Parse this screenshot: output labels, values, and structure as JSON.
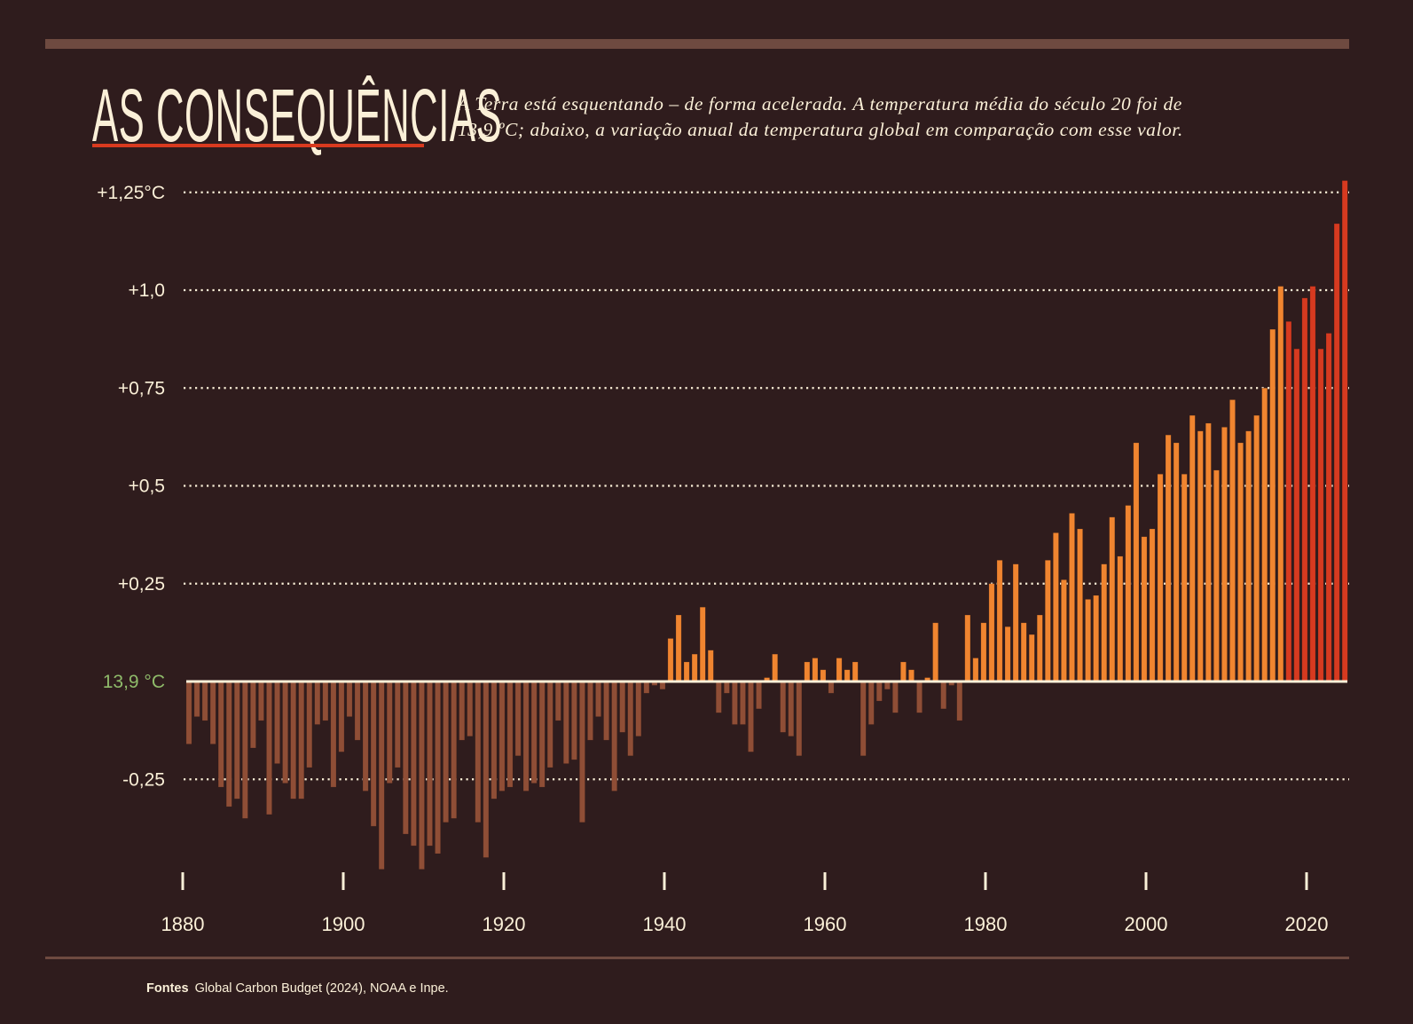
{
  "header": {
    "title": "AS CONSEQUÊNCIAS",
    "subtitle_line1": "A Terra está esquentando – de forma acelerada. A temperatura média do século 20 foi de",
    "subtitle_line2": "13,9 ºC; abaixo, a variação anual da temperatura global em comparação com esse valor."
  },
  "footer": {
    "label": "Fontes",
    "text": "Global Carbon Budget (2024), NOAA e Inpe."
  },
  "colors": {
    "background": "#2f1c1d",
    "band": "#6e4a40",
    "text": "#fbf0d8",
    "accent_red": "#d93a1f",
    "negative_bar": "#8f4e36",
    "positive_bar": "#f08530",
    "recent_bar": "#d63a20",
    "baseline_label": "#8fbb6a"
  },
  "chart_data": {
    "type": "bar",
    "title": "",
    "xlabel": "",
    "ylabel": "",
    "baseline_label": "13,9 °C",
    "ylim": [
      -0.5,
      1.3
    ],
    "grid": "horizontal dotted",
    "y_ticks": [
      {
        "value": 1.25,
        "label": "+1,25°C"
      },
      {
        "value": 1.0,
        "label": "+1,0"
      },
      {
        "value": 0.75,
        "label": "+0,75"
      },
      {
        "value": 0.5,
        "label": "+0,5"
      },
      {
        "value": 0.25,
        "label": "+0,25"
      },
      {
        "value": -0.25,
        "label": "-0,25"
      }
    ],
    "x_ticks": [
      {
        "value": 1880,
        "label": "1880"
      },
      {
        "value": 1900,
        "label": "1900"
      },
      {
        "value": 1920,
        "label": "1920"
      },
      {
        "value": 1940,
        "label": "1940"
      },
      {
        "value": 1960,
        "label": "1960"
      },
      {
        "value": 1980,
        "label": "1980"
      },
      {
        "value": 2000,
        "label": "2000"
      },
      {
        "value": 2020,
        "label": "2020"
      }
    ],
    "highlight_from_year": 2017,
    "x_start": 1880,
    "values": [
      -0.16,
      -0.09,
      -0.1,
      -0.16,
      -0.27,
      -0.32,
      -0.3,
      -0.35,
      -0.17,
      -0.1,
      -0.34,
      -0.21,
      -0.26,
      -0.3,
      -0.3,
      -0.22,
      -0.11,
      -0.1,
      -0.27,
      -0.18,
      -0.09,
      -0.15,
      -0.28,
      -0.37,
      -0.48,
      -0.26,
      -0.22,
      -0.39,
      -0.42,
      -0.48,
      -0.42,
      -0.44,
      -0.36,
      -0.35,
      -0.15,
      -0.14,
      -0.36,
      -0.45,
      -0.3,
      -0.28,
      -0.27,
      -0.19,
      -0.28,
      -0.26,
      -0.27,
      -0.22,
      -0.1,
      -0.21,
      -0.2,
      -0.36,
      -0.15,
      -0.09,
      -0.15,
      -0.28,
      -0.13,
      -0.19,
      -0.14,
      -0.03,
      -0.01,
      -0.02,
      0.11,
      0.17,
      0.05,
      0.07,
      0.19,
      0.08,
      -0.08,
      -0.03,
      -0.11,
      -0.11,
      -0.18,
      -0.07,
      0.01,
      0.07,
      -0.13,
      -0.14,
      -0.19,
      0.05,
      0.06,
      0.03,
      -0.03,
      0.06,
      0.03,
      0.05,
      -0.19,
      -0.11,
      -0.05,
      -0.02,
      -0.08,
      0.05,
      0.03,
      -0.08,
      0.01,
      0.15,
      -0.07,
      -0.01,
      -0.1,
      0.17,
      0.06,
      0.15,
      0.25,
      0.31,
      0.14,
      0.3,
      0.15,
      0.12,
      0.17,
      0.31,
      0.38,
      0.26,
      0.43,
      0.39,
      0.21,
      0.22,
      0.3,
      0.42,
      0.32,
      0.45,
      0.61,
      0.37,
      0.39,
      0.53,
      0.63,
      0.61,
      0.53,
      0.68,
      0.64,
      0.66,
      0.54,
      0.65,
      0.72,
      0.61,
      0.64,
      0.68,
      0.75,
      0.9,
      1.01,
      0.92,
      0.85,
      0.98,
      1.01,
      0.85,
      0.89,
      1.17,
      1.28
    ]
  }
}
